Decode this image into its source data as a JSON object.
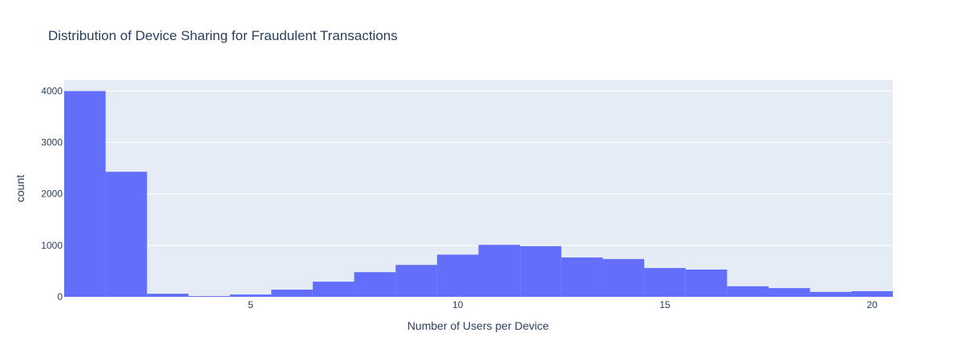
{
  "chart_data": {
    "type": "bar",
    "title": "Distribution of Device Sharing for Fraudulent Transactions",
    "xlabel": "Number of Users per Device",
    "ylabel": "count",
    "x": [
      1,
      2,
      3,
      4,
      5,
      6,
      7,
      8,
      9,
      10,
      11,
      12,
      13,
      14,
      15,
      16,
      17,
      18,
      19,
      20
    ],
    "values": [
      4000,
      2430,
      60,
      15,
      45,
      140,
      295,
      480,
      620,
      820,
      1010,
      985,
      765,
      735,
      560,
      530,
      205,
      170,
      95,
      110
    ],
    "xlim": [
      0.5,
      20.5
    ],
    "ylim": [
      0,
      4210
    ],
    "x_ticks": [
      5,
      10,
      15,
      20
    ],
    "y_ticks": [
      0,
      1000,
      2000,
      3000,
      4000
    ],
    "grid": true,
    "colors": {
      "bar": "#636efa",
      "plot_bg": "#e5ecf6",
      "grid": "#ffffff",
      "text": "#2a3f5f"
    }
  }
}
